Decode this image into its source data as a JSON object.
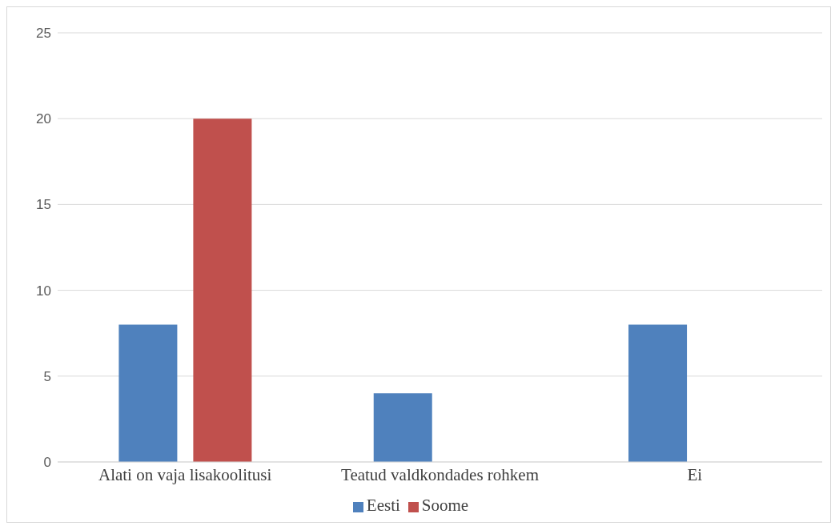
{
  "chart_data": {
    "type": "bar",
    "categories": [
      "Alati on vaja lisakoolitusi",
      "Teatud valdkondades rohkem",
      "Ei"
    ],
    "series": [
      {
        "name": "Eesti",
        "color": "#4f81bd",
        "values": [
          8,
          4,
          8
        ]
      },
      {
        "name": "Soome",
        "color": "#c0504d",
        "values": [
          20,
          0,
          0
        ]
      }
    ],
    "ylim": [
      0,
      25
    ],
    "yticks": [
      0,
      5,
      10,
      15,
      20,
      25
    ],
    "grid": "y",
    "legend": "bottom"
  }
}
